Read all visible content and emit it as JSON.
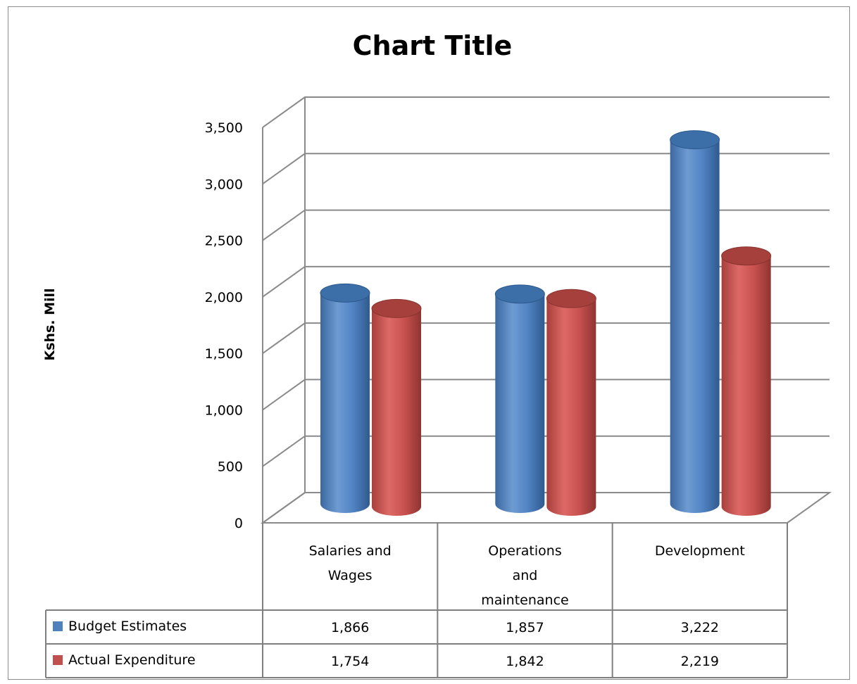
{
  "chart_data": {
    "type": "bar",
    "title": "Chart Title",
    "ylabel": "Kshs. Mill",
    "xlabel": "",
    "categories": [
      [
        "Salaries and",
        "Wages"
      ],
      [
        "Operations",
        "and",
        "maintenance"
      ],
      [
        "Development"
      ]
    ],
    "series": [
      {
        "name": "Budget Estimates",
        "color": "#4f81bd",
        "values": [
          1866,
          1857,
          3222
        ],
        "labels": [
          "1,866",
          "1,857",
          "3,222"
        ]
      },
      {
        "name": "Actual Expenditure",
        "color": "#c0504d",
        "values": [
          1754,
          1842,
          2219
        ],
        "labels": [
          "1,754",
          "1,842",
          "2,219"
        ]
      }
    ],
    "ylim": [
      0,
      3500
    ],
    "yticks": [
      "0",
      "500",
      "1,000",
      "1,500",
      "2,000",
      "2,500",
      "3,000",
      "3,500"
    ],
    "grid": true,
    "legend": "data-table",
    "style": "3d-cylinder"
  }
}
